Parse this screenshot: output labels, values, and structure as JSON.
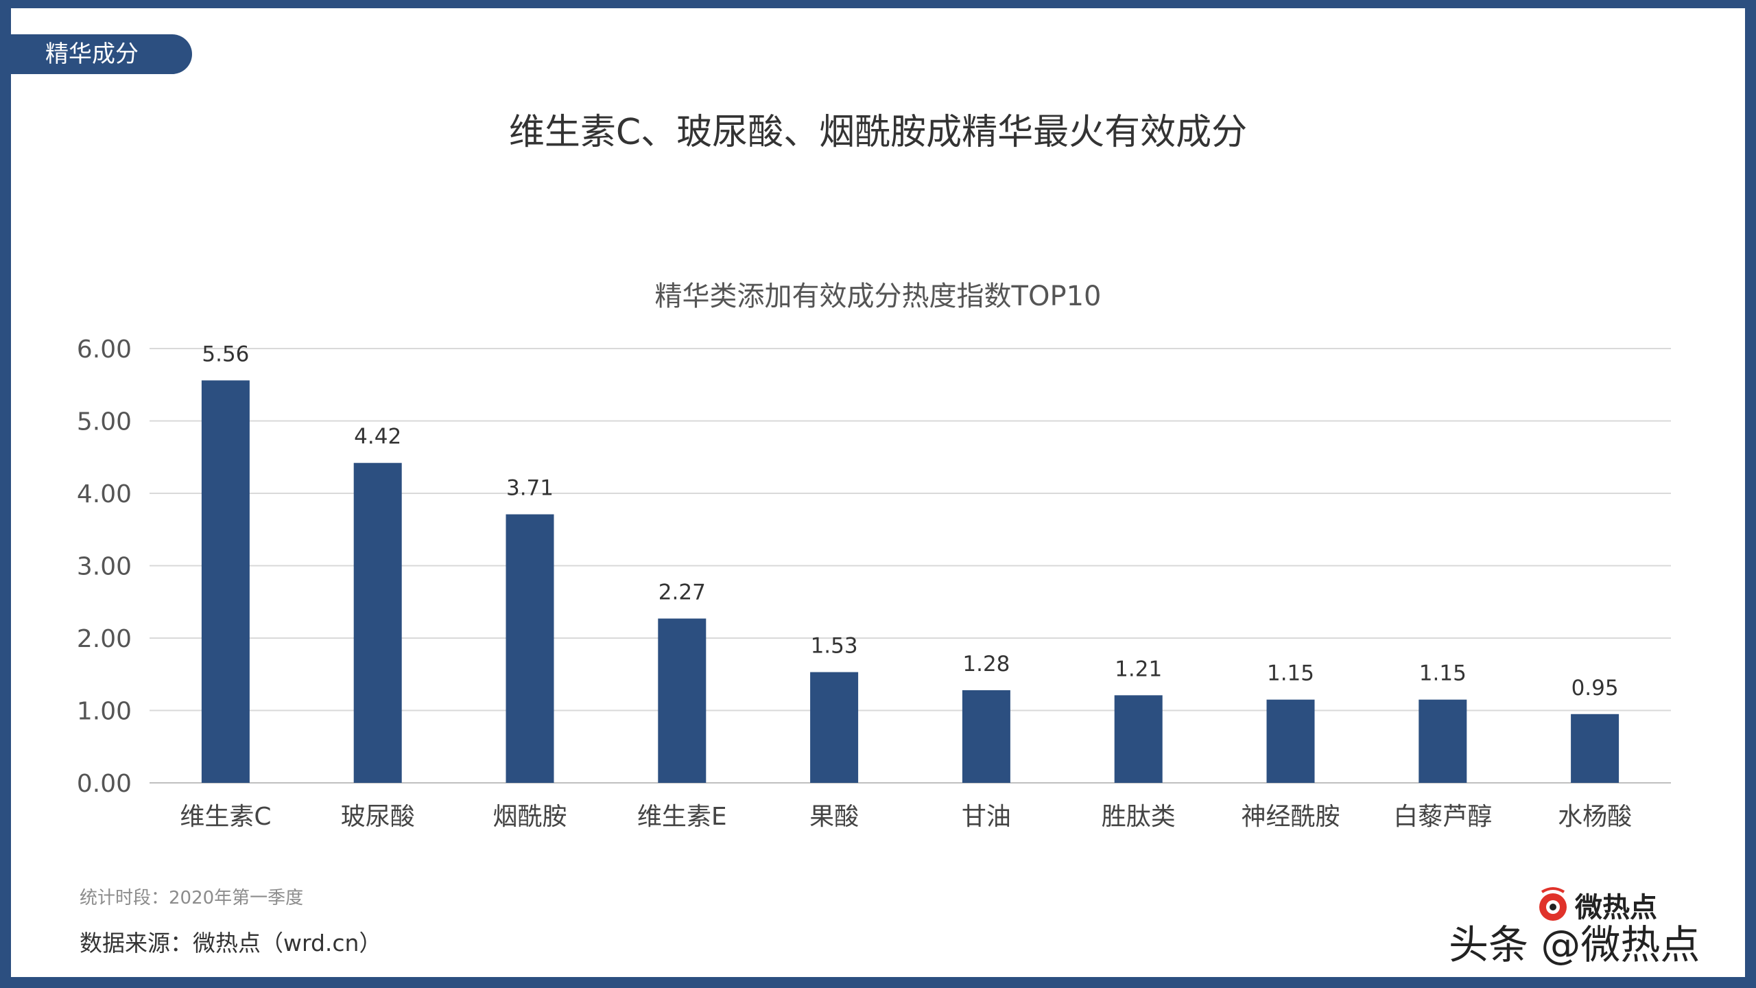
{
  "section_tab": "精华成分",
  "main_title": "维生素C、玻尿酸、烟酰胺成精华最火有效成分",
  "colors": {
    "frame": "#2c4f80",
    "bar": "#2c4f80",
    "grid": "#d9d9d9"
  },
  "chart_data": {
    "type": "bar",
    "title": "精华类添加有效成分热度指数TOP10",
    "categories": [
      "维生素C",
      "玻尿酸",
      "烟酰胺",
      "维生素E",
      "果酸",
      "甘油",
      "胜肽类",
      "神经酰胺",
      "白藜芦醇",
      "水杨酸"
    ],
    "values": [
      5.56,
      4.42,
      3.71,
      2.27,
      1.53,
      1.28,
      1.21,
      1.15,
      1.15,
      0.95
    ],
    "value_labels": [
      "5.56",
      "4.42",
      "3.71",
      "2.27",
      "1.53",
      "1.28",
      "1.21",
      "1.15",
      "1.15",
      "0.95"
    ],
    "yticks": [
      "0.00",
      "1.00",
      "2.00",
      "3.00",
      "4.00",
      "5.00",
      "6.00"
    ],
    "ylim": [
      0,
      6
    ],
    "grid": true,
    "legend": "none"
  },
  "footer": {
    "period": "统计时段：2020年第一季度",
    "source": "数据来源：微热点（wrd.cn）"
  },
  "watermark": {
    "brand": "微热点",
    "credit": "头条 @微热点",
    "logo_icon": "weibo-eye-icon"
  }
}
